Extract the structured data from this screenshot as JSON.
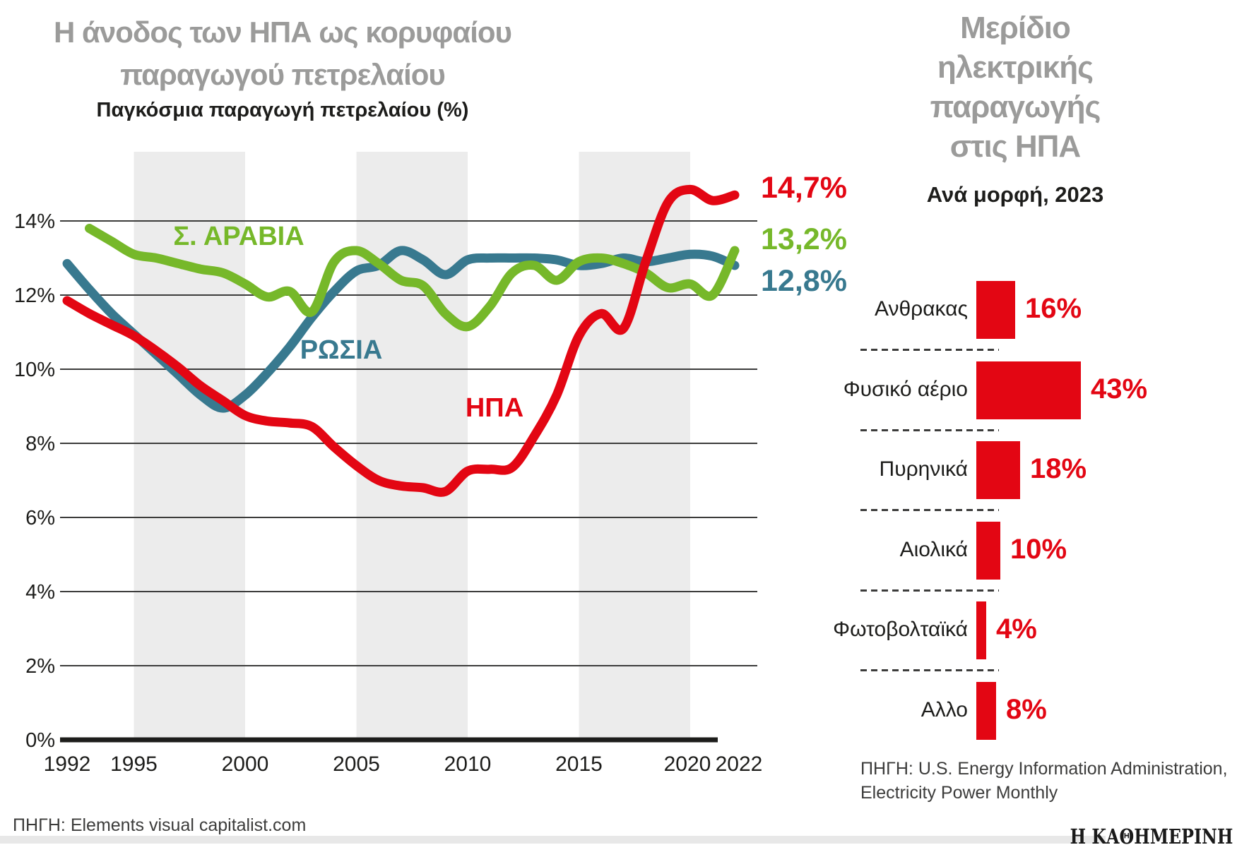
{
  "left_chart": {
    "title_line1": "Η άνοδος των ΗΠΑ ως κορυφαίου",
    "title_line2": "παραγωγού πετρελαίου",
    "subtitle": "Παγκόσμια παραγωγή πετρελαίου (%)",
    "source": "ΠΗΓΗ: Elements visual capitalist.com"
  },
  "right_chart": {
    "title_lines": [
      "Μερίδιο",
      "ηλεκτρικής",
      "παραγωγής",
      "στις ΗΠΑ"
    ],
    "subtitle": "Ανά μορφή, 2023",
    "source_line1": "ΠΗΓΗ: U.S. Energy Information Administration,",
    "source_line2": "Electricity Power Monthly"
  },
  "footer": {
    "logo": "Η ΚΑΘΗΜΕΡΙΝΗ"
  },
  "colors": {
    "red": "#e30613",
    "green": "#76b82a",
    "teal": "#38798f",
    "title_gray": "#9b9b9a",
    "text_dark": "#1d1d1b",
    "grid": "#3c3c3b",
    "band": "#ececec",
    "footer_bar": "#e8e8e8"
  },
  "chart_data": [
    {
      "type": "line",
      "title": "Παγκόσμια παραγωγή πετρελαίου (%)",
      "x": [
        1992,
        1993,
        1994,
        1995,
        1996,
        1997,
        1998,
        1999,
        2000,
        2001,
        2002,
        2003,
        2004,
        2005,
        2006,
        2007,
        2008,
        2009,
        2010,
        2011,
        2012,
        2013,
        2014,
        2015,
        2016,
        2017,
        2018,
        2019,
        2020,
        2021,
        2022
      ],
      "x_ticks": [
        {
          "year": 1992,
          "label": "1992"
        },
        {
          "year": 1995,
          "label": "1995"
        },
        {
          "year": 2000,
          "label": "2000"
        },
        {
          "year": 2005,
          "label": "2005"
        },
        {
          "year": 2010,
          "label": "2010"
        },
        {
          "year": 2015,
          "label": "2015"
        },
        {
          "year": 2020,
          "label": "2020"
        },
        {
          "year": 2022,
          "label": "2022"
        }
      ],
      "y_ticks": [
        {
          "value": 0,
          "label": "0%"
        },
        {
          "value": 2,
          "label": "2%"
        },
        {
          "value": 4,
          "label": "4%"
        },
        {
          "value": 6,
          "label": "6%"
        },
        {
          "value": 8,
          "label": "8%"
        },
        {
          "value": 10,
          "label": "10%"
        },
        {
          "value": 12,
          "label": "12%"
        },
        {
          "value": 14,
          "label": "14%"
        }
      ],
      "ylim": [
        0,
        15.5
      ],
      "bands": [
        [
          1995,
          2000
        ],
        [
          2005,
          2010
        ],
        [
          2015,
          2020
        ]
      ],
      "series": [
        {
          "name": "Σ. ΑΡΑΒΙΑ",
          "color": "#76b82a",
          "end_label": "13,2%",
          "values": [
            null,
            13.8,
            13.45,
            13.1,
            13.0,
            12.85,
            12.7,
            12.6,
            12.3,
            11.95,
            12.1,
            11.55,
            12.9,
            13.2,
            12.85,
            12.4,
            12.25,
            11.5,
            11.15,
            11.7,
            12.6,
            12.8,
            12.4,
            12.9,
            13.0,
            12.85,
            12.6,
            12.2,
            12.3,
            12.0,
            13.2
          ]
        },
        {
          "name": "ΡΩΣΙΑ",
          "color": "#38798f",
          "end_label": "12,8%",
          "values": [
            12.85,
            12.15,
            11.5,
            10.95,
            10.4,
            9.85,
            9.3,
            8.95,
            9.3,
            9.9,
            10.6,
            11.4,
            12.1,
            12.65,
            12.8,
            13.2,
            12.95,
            12.55,
            12.95,
            13.0,
            13.0,
            13.0,
            12.95,
            12.8,
            12.85,
            13.0,
            12.9,
            13.0,
            13.1,
            13.05,
            12.8
          ]
        },
        {
          "name": "ΗΠΑ",
          "color": "#e30613",
          "end_label": "14,7%",
          "values": [
            11.85,
            11.5,
            11.2,
            10.9,
            10.5,
            10.05,
            9.55,
            9.15,
            8.75,
            8.6,
            8.55,
            8.45,
            7.9,
            7.4,
            7.0,
            6.85,
            6.8,
            6.7,
            7.25,
            7.3,
            7.35,
            8.2,
            9.3,
            10.9,
            11.5,
            11.1,
            12.9,
            14.5,
            14.85,
            14.55,
            14.7
          ]
        }
      ]
    },
    {
      "type": "bar",
      "title": "Μερίδιο ηλεκτρικής παραγωγής στις ΗΠΑ — Ανά μορφή, 2023",
      "categories": [
        "Ανθρακας",
        "Φυσικό αέριο",
        "Πυρηνικά",
        "Αιολικά",
        "Φωτοβολταϊκά",
        "Αλλο"
      ],
      "values": [
        16,
        43,
        18,
        10,
        4,
        8
      ],
      "value_labels": [
        "16%",
        "43%",
        "18%",
        "10%",
        "4%",
        "8%"
      ],
      "unit": "%",
      "bar_color": "#e30613"
    }
  ]
}
